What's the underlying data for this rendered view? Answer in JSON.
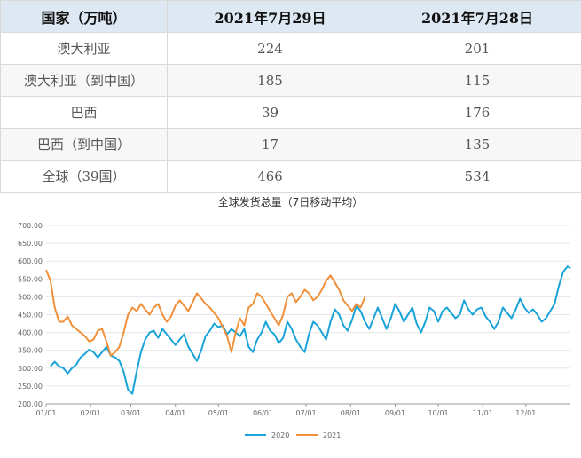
{
  "table": {
    "headers": [
      "国家（万吨）",
      "2021年7月29日",
      "2021年7月28日"
    ],
    "rows": [
      [
        "澳大利亚",
        "224",
        "201"
      ],
      [
        "澳大利亚（到中国）",
        "185",
        "115"
      ],
      [
        "巴西",
        "39",
        "176"
      ],
      [
        "巴西（到中国）",
        "17",
        "135"
      ],
      [
        "全球（39国）",
        "466",
        "534"
      ]
    ]
  },
  "chart_data": {
    "type": "line",
    "title": "全球发货总量（7日移动平均）",
    "x_ticks": [
      "01/01",
      "02/01",
      "03/01",
      "04/01",
      "05/01",
      "06/01",
      "07/01",
      "08/01",
      "09/01",
      "10/01",
      "11/01",
      "12/01"
    ],
    "y_ticks": [
      "200.00",
      "250.00",
      "300.00",
      "350.00",
      "400.00",
      "450.00",
      "500.00",
      "550.00",
      "600.00",
      "650.00",
      "700.00"
    ],
    "ylim": [
      200,
      700
    ],
    "xlim_days": [
      0,
      365
    ],
    "grid": true,
    "legend_position": "bottom",
    "series": [
      {
        "name": "2020",
        "color": "#1aa3d9",
        "points": [
          [
            3,
            305
          ],
          [
            6,
            318
          ],
          [
            9,
            305
          ],
          [
            12,
            300
          ],
          [
            15,
            285
          ],
          [
            18,
            300
          ],
          [
            21,
            310
          ],
          [
            24,
            330
          ],
          [
            27,
            340
          ],
          [
            30,
            352
          ],
          [
            33,
            345
          ],
          [
            36,
            330
          ],
          [
            39,
            345
          ],
          [
            42,
            360
          ],
          [
            45,
            335
          ],
          [
            48,
            330
          ],
          [
            51,
            320
          ],
          [
            54,
            290
          ],
          [
            57,
            240
          ],
          [
            60,
            228
          ],
          [
            63,
            290
          ],
          [
            66,
            345
          ],
          [
            69,
            380
          ],
          [
            72,
            400
          ],
          [
            75,
            405
          ],
          [
            78,
            385
          ],
          [
            81,
            410
          ],
          [
            84,
            395
          ],
          [
            87,
            380
          ],
          [
            90,
            365
          ],
          [
            93,
            380
          ],
          [
            96,
            395
          ],
          [
            99,
            360
          ],
          [
            102,
            340
          ],
          [
            105,
            320
          ],
          [
            108,
            350
          ],
          [
            111,
            390
          ],
          [
            114,
            405
          ],
          [
            117,
            425
          ],
          [
            120,
            415
          ],
          [
            123,
            420
          ],
          [
            126,
            395
          ],
          [
            129,
            410
          ],
          [
            132,
            400
          ],
          [
            135,
            390
          ],
          [
            138,
            410
          ],
          [
            141,
            360
          ],
          [
            144,
            345
          ],
          [
            147,
            380
          ],
          [
            150,
            400
          ],
          [
            153,
            430
          ],
          [
            156,
            405
          ],
          [
            159,
            395
          ],
          [
            162,
            370
          ],
          [
            165,
            385
          ],
          [
            168,
            430
          ],
          [
            171,
            410
          ],
          [
            174,
            380
          ],
          [
            177,
            360
          ],
          [
            180,
            345
          ],
          [
            183,
            395
          ],
          [
            186,
            430
          ],
          [
            189,
            420
          ],
          [
            192,
            400
          ],
          [
            195,
            380
          ],
          [
            198,
            430
          ],
          [
            201,
            465
          ],
          [
            204,
            450
          ],
          [
            207,
            420
          ],
          [
            210,
            405
          ],
          [
            213,
            435
          ],
          [
            216,
            475
          ],
          [
            219,
            460
          ],
          [
            222,
            430
          ],
          [
            225,
            410
          ],
          [
            228,
            440
          ],
          [
            231,
            470
          ],
          [
            234,
            440
          ],
          [
            237,
            410
          ],
          [
            240,
            440
          ],
          [
            243,
            480
          ],
          [
            246,
            460
          ],
          [
            249,
            430
          ],
          [
            252,
            450
          ],
          [
            255,
            470
          ],
          [
            258,
            425
          ],
          [
            261,
            400
          ],
          [
            264,
            430
          ],
          [
            267,
            470
          ],
          [
            270,
            460
          ],
          [
            273,
            430
          ],
          [
            276,
            460
          ],
          [
            279,
            470
          ],
          [
            282,
            455
          ],
          [
            285,
            440
          ],
          [
            288,
            450
          ],
          [
            291,
            490
          ],
          [
            294,
            465
          ],
          [
            297,
            450
          ],
          [
            300,
            465
          ],
          [
            303,
            470
          ],
          [
            306,
            445
          ],
          [
            309,
            430
          ],
          [
            312,
            410
          ],
          [
            315,
            430
          ],
          [
            318,
            470
          ],
          [
            321,
            455
          ],
          [
            324,
            440
          ],
          [
            327,
            465
          ],
          [
            330,
            495
          ],
          [
            333,
            470
          ],
          [
            336,
            455
          ],
          [
            339,
            465
          ],
          [
            342,
            450
          ],
          [
            345,
            430
          ],
          [
            348,
            440
          ],
          [
            351,
            460
          ],
          [
            354,
            480
          ],
          [
            357,
            530
          ],
          [
            360,
            570
          ],
          [
            363,
            585
          ],
          [
            365,
            580
          ]
        ]
      },
      {
        "name": "2021",
        "color": "#f0903a",
        "points": [
          [
            0,
            575
          ],
          [
            3,
            545
          ],
          [
            6,
            470
          ],
          [
            9,
            430
          ],
          [
            12,
            430
          ],
          [
            15,
            445
          ],
          [
            18,
            420
          ],
          [
            21,
            410
          ],
          [
            24,
            400
          ],
          [
            27,
            390
          ],
          [
            30,
            375
          ],
          [
            33,
            380
          ],
          [
            36,
            405
          ],
          [
            39,
            410
          ],
          [
            42,
            375
          ],
          [
            45,
            335
          ],
          [
            48,
            345
          ],
          [
            51,
            360
          ],
          [
            54,
            400
          ],
          [
            57,
            450
          ],
          [
            60,
            470
          ],
          [
            63,
            460
          ],
          [
            66,
            480
          ],
          [
            69,
            465
          ],
          [
            72,
            450
          ],
          [
            75,
            470
          ],
          [
            78,
            480
          ],
          [
            81,
            450
          ],
          [
            84,
            430
          ],
          [
            87,
            445
          ],
          [
            90,
            475
          ],
          [
            93,
            490
          ],
          [
            96,
            475
          ],
          [
            99,
            460
          ],
          [
            102,
            485
          ],
          [
            105,
            510
          ],
          [
            108,
            495
          ],
          [
            111,
            480
          ],
          [
            114,
            470
          ],
          [
            117,
            455
          ],
          [
            120,
            440
          ],
          [
            123,
            415
          ],
          [
            126,
            390
          ],
          [
            129,
            345
          ],
          [
            132,
            400
          ],
          [
            135,
            440
          ],
          [
            138,
            420
          ],
          [
            141,
            470
          ],
          [
            144,
            480
          ],
          [
            147,
            510
          ],
          [
            150,
            500
          ],
          [
            153,
            480
          ],
          [
            156,
            460
          ],
          [
            159,
            440
          ],
          [
            162,
            420
          ],
          [
            165,
            450
          ],
          [
            168,
            500
          ],
          [
            171,
            510
          ],
          [
            174,
            485
          ],
          [
            177,
            500
          ],
          [
            180,
            520
          ],
          [
            183,
            510
          ],
          [
            186,
            490
          ],
          [
            189,
            500
          ],
          [
            192,
            520
          ],
          [
            195,
            545
          ],
          [
            198,
            560
          ],
          [
            201,
            540
          ],
          [
            204,
            520
          ],
          [
            207,
            490
          ],
          [
            210,
            475
          ],
          [
            213,
            460
          ],
          [
            216,
            480
          ],
          [
            219,
            470
          ],
          [
            222,
            500
          ]
        ]
      }
    ]
  },
  "legend": [
    "2020",
    "2021"
  ]
}
